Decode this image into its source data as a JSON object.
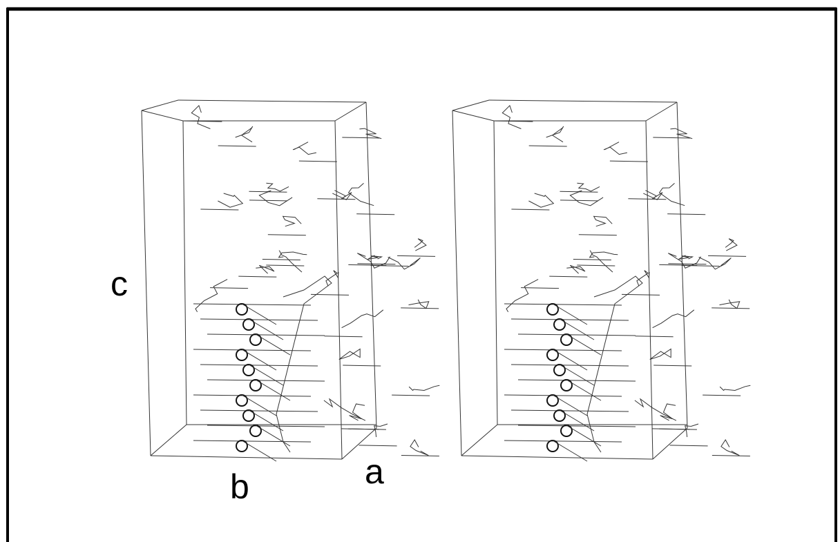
{
  "axis_labels": {
    "c": "c",
    "b": "b",
    "a": "a"
  }
}
